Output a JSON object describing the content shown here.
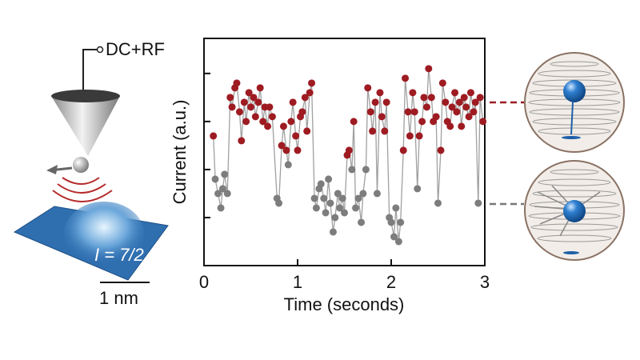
{
  "chart_data": {
    "type": "scatter-line",
    "ylabel": "Current (a.u.)",
    "xlabel": "Time (seconds)",
    "xlim": [
      0,
      3
    ],
    "xticks": [
      0,
      1,
      2,
      3
    ],
    "ylim": [
      0,
      4.73
    ],
    "yticks": [
      1,
      2,
      3,
      4
    ],
    "annotations": [
      "DC+RF",
      "I = 7/2",
      "1 nm"
    ],
    "series": [
      {
        "color": "#a0a0a0",
        "x": [
          0.1,
          0.12,
          0.15,
          0.18,
          0.2,
          0.22,
          0.25,
          0.28,
          0.3,
          0.33,
          0.35,
          0.38,
          0.4,
          0.43,
          0.45,
          0.48,
          0.5,
          0.53,
          0.55,
          0.58,
          0.6,
          0.63,
          0.65,
          0.68,
          0.7,
          0.73,
          0.78,
          0.8,
          0.83,
          0.85,
          0.88,
          0.9,
          0.93,
          0.95,
          0.98,
          1.0,
          1.03,
          1.05,
          1.08,
          1.1,
          1.13,
          1.15,
          1.18,
          1.2,
          1.23,
          1.25,
          1.28,
          1.3,
          1.33,
          1.35,
          1.38,
          1.4,
          1.43,
          1.45,
          1.48,
          1.5,
          1.53,
          1.55,
          1.58,
          1.6,
          1.62,
          1.65,
          1.68,
          1.7,
          1.73,
          1.75,
          1.78,
          1.8,
          1.83,
          1.85,
          1.88,
          1.9,
          1.93,
          1.95,
          1.98,
          2.0,
          2.03,
          2.05,
          2.08,
          2.1,
          2.13,
          2.15,
          2.18,
          2.2,
          2.23,
          2.25,
          2.28,
          2.3,
          2.33,
          2.35,
          2.38,
          2.4,
          2.43,
          2.45,
          2.48,
          2.5,
          2.53,
          2.55,
          2.58,
          2.6,
          2.63,
          2.65,
          2.68,
          2.7,
          2.73,
          2.75,
          2.78,
          2.8,
          2.83,
          2.85,
          2.88,
          2.9,
          2.93,
          2.95,
          2.98
        ],
        "values": [
          2.7,
          1.8,
          1.5,
          1.2,
          1.6,
          1.9,
          1.5,
          3.5,
          3.3,
          3.7,
          3.8,
          3.2,
          2.6,
          3.4,
          3.0,
          3.6,
          3.3,
          3.5,
          3.1,
          3.4,
          3.7,
          3.0,
          3.3,
          2.9,
          3.3,
          3.1,
          1.4,
          1.3,
          2.5,
          2.9,
          2.4,
          2.1,
          3.0,
          3.4,
          2.7,
          2.4,
          3.1,
          3.2,
          3.5,
          2.8,
          3.6,
          3.8,
          1.4,
          1.2,
          1.6,
          1.7,
          1.4,
          1.1,
          1.8,
          1.3,
          0.7,
          1.0,
          1.5,
          1.2,
          1.4,
          1.1,
          2.3,
          2.4,
          2.0,
          3.0,
          1.2,
          1.4,
          0.9,
          1.5,
          2.0,
          3.7,
          3.2,
          2.8,
          3.4,
          1.5,
          3.6,
          3.1,
          2.8,
          3.4,
          1.0,
          0.9,
          0.6,
          1.2,
          0.5,
          0.9,
          2.4,
          3.9,
          3.2,
          2.7,
          3.6,
          3.2,
          1.6,
          2.7,
          3.0,
          3.5,
          3.3,
          4.1,
          3.5,
          3.0,
          3.1,
          1.3,
          2.4,
          3.8,
          3.4,
          3.0,
          2.9,
          3.3,
          3.6,
          3.2,
          3.4,
          2.9,
          3.5,
          3.3,
          3.1,
          3.6,
          3.2,
          3.4,
          1.3,
          3.5,
          3.0
        ],
        "marker_colors": [
          "#9e1b22",
          "#7d7d7d",
          "#7d7d7d",
          "#7d7d7d",
          "#7d7d7d",
          "#7d7d7d",
          "#7d7d7d",
          "#9e1b22",
          "#9e1b22",
          "#9e1b22",
          "#9e1b22",
          "#9e1b22",
          "#9e1b22",
          "#9e1b22",
          "#9e1b22",
          "#9e1b22",
          "#9e1b22",
          "#9e1b22",
          "#9e1b22",
          "#9e1b22",
          "#9e1b22",
          "#9e1b22",
          "#9e1b22",
          "#9e1b22",
          "#9e1b22",
          "#9e1b22",
          "#7d7d7d",
          "#7d7d7d",
          "#9e1b22",
          "#9e1b22",
          "#9e1b22",
          "#7d7d7d",
          "#9e1b22",
          "#9e1b22",
          "#9e1b22",
          "#9e1b22",
          "#9e1b22",
          "#9e1b22",
          "#9e1b22",
          "#9e1b22",
          "#9e1b22",
          "#9e1b22",
          "#7d7d7d",
          "#7d7d7d",
          "#7d7d7d",
          "#7d7d7d",
          "#7d7d7d",
          "#7d7d7d",
          "#7d7d7d",
          "#7d7d7d",
          "#7d7d7d",
          "#7d7d7d",
          "#7d7d7d",
          "#7d7d7d",
          "#7d7d7d",
          "#7d7d7d",
          "#9e1b22",
          "#9e1b22",
          "#7d7d7d",
          "#9e1b22",
          "#7d7d7d",
          "#7d7d7d",
          "#7d7d7d",
          "#7d7d7d",
          "#7d7d7d",
          "#9e1b22",
          "#9e1b22",
          "#9e1b22",
          "#9e1b22",
          "#7d7d7d",
          "#9e1b22",
          "#9e1b22",
          "#9e1b22",
          "#9e1b22",
          "#7d7d7d",
          "#7d7d7d",
          "#7d7d7d",
          "#7d7d7d",
          "#7d7d7d",
          "#7d7d7d",
          "#9e1b22",
          "#9e1b22",
          "#9e1b22",
          "#9e1b22",
          "#9e1b22",
          "#9e1b22",
          "#7d7d7d",
          "#9e1b22",
          "#9e1b22",
          "#9e1b22",
          "#9e1b22",
          "#9e1b22",
          "#9e1b22",
          "#9e1b22",
          "#9e1b22",
          "#7d7d7d",
          "#9e1b22",
          "#9e1b22",
          "#9e1b22",
          "#9e1b22",
          "#9e1b22",
          "#9e1b22",
          "#9e1b22",
          "#9e1b22",
          "#9e1b22",
          "#9e1b22",
          "#9e1b22",
          "#9e1b22",
          "#9e1b22",
          "#9e1b22",
          "#9e1b22",
          "#9e1b22",
          "#7d7d7d",
          "#9e1b22",
          "#9e1b22"
        ]
      }
    ]
  }
}
